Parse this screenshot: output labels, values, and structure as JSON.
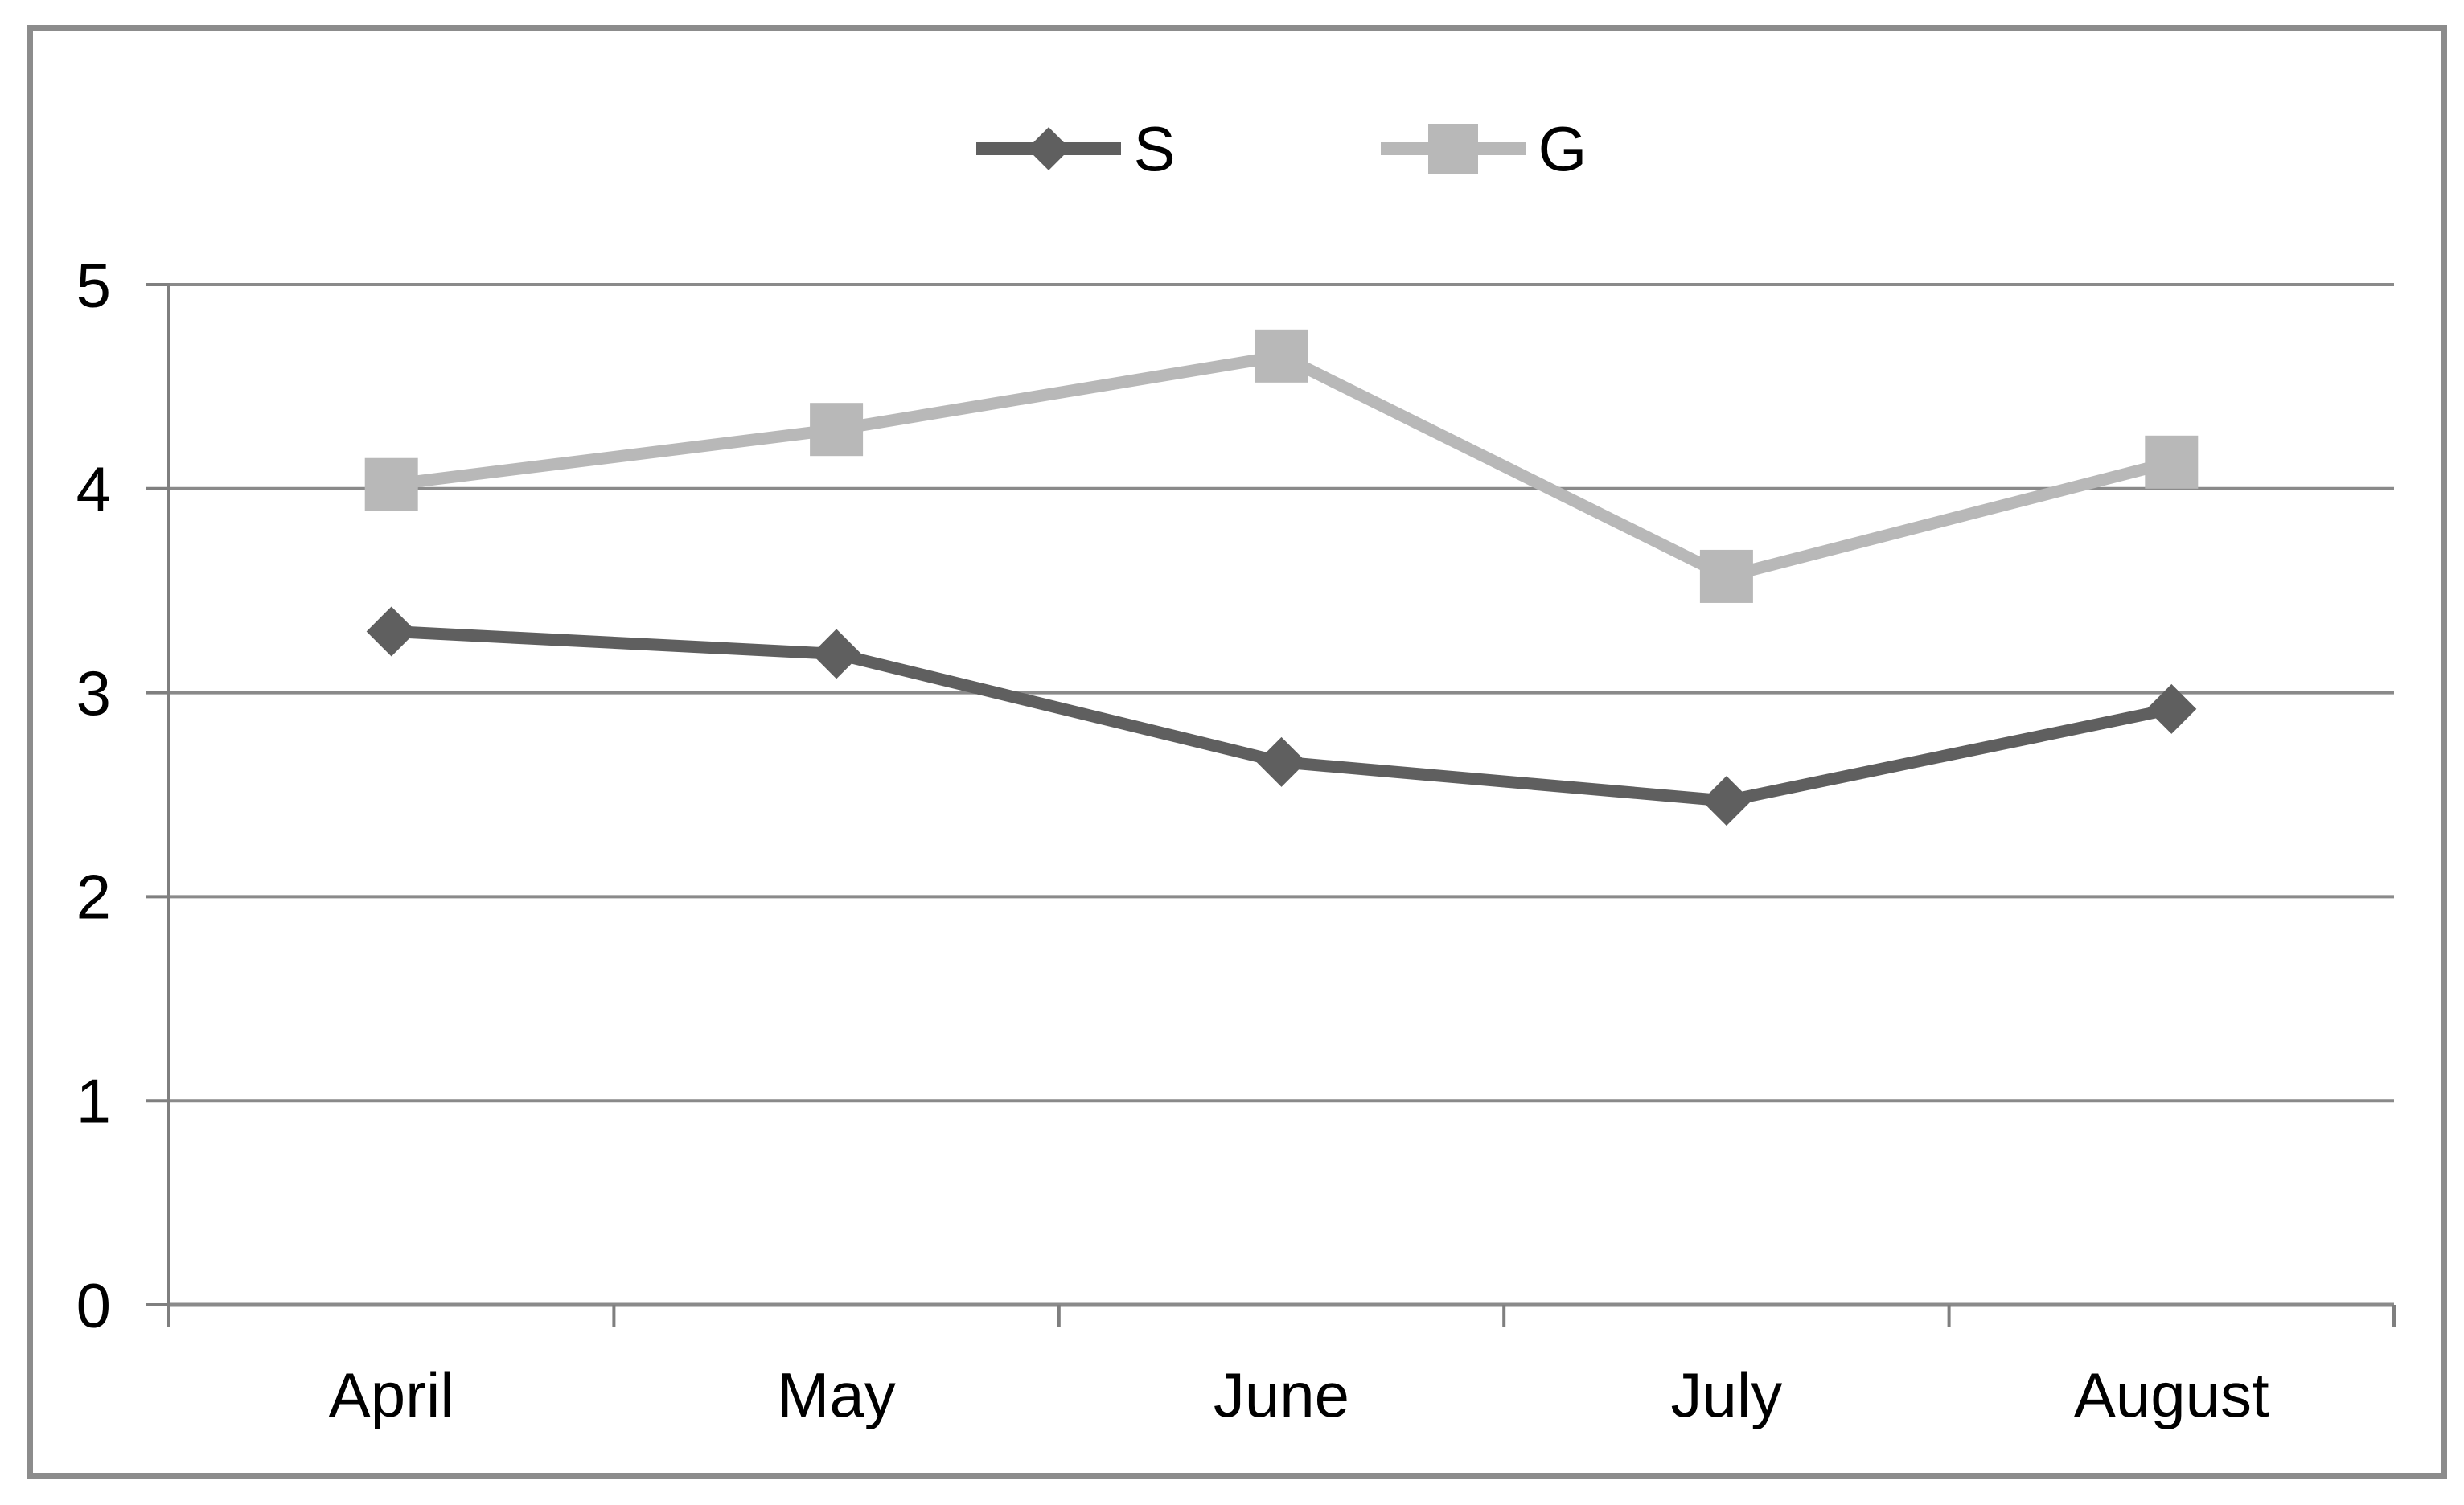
{
  "window": {
    "background": "#ffffff"
  },
  "colors": {
    "series_s": "#5f5f5f",
    "series_g": "#b8b8b8",
    "gridline": "#8a8a8a",
    "axis": "#7f7f7f",
    "border": "#8c8c8c",
    "text": "#000000"
  },
  "chart_data": {
    "type": "line",
    "title": "",
    "xlabel": "",
    "ylabel": "",
    "categories": [
      "April",
      "May",
      "June",
      "July",
      "August"
    ],
    "series": [
      {
        "name": "S",
        "marker": "diamond",
        "color": "#5f5f5f",
        "values": [
          3.3,
          3.19,
          2.66,
          2.47,
          2.92
        ]
      },
      {
        "name": "G",
        "marker": "square",
        "color": "#b8b8b8",
        "values": [
          4.02,
          4.29,
          4.65,
          3.57,
          4.13
        ]
      }
    ],
    "ylim": [
      0,
      5
    ],
    "yticks": [
      5,
      4,
      3,
      2,
      1,
      0
    ],
    "grid": true,
    "legend_position": "top-center"
  }
}
